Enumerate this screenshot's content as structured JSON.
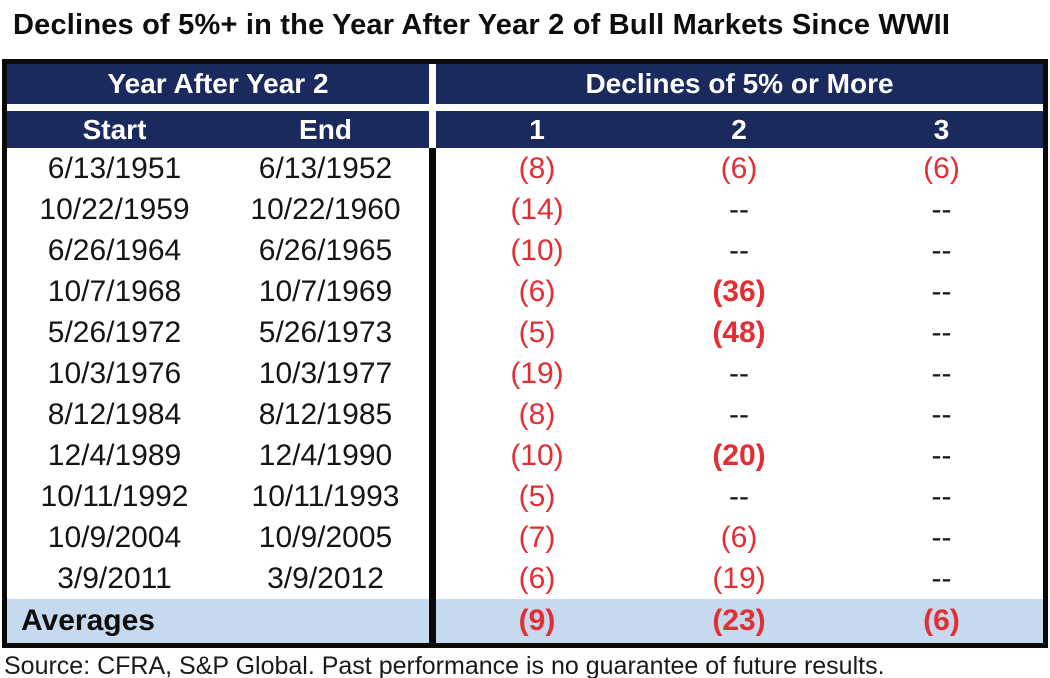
{
  "title": "Declines of 5%+ in the Year After Year 2 of Bull Markets Since WWII",
  "footer": "Source: CFRA, S&P Global. Past performance is no guarantee of future results.",
  "colors": {
    "navy": "#1b2a5c",
    "red": "#e32e33",
    "averages_bg": "#c6d9ee",
    "border": "#0a0a0a"
  },
  "chart_data": {
    "type": "table",
    "title": "Declines of 5%+ in the Year After Year 2 of Bull Markets Since WWII",
    "group_headers": [
      {
        "label": "Year After Year 2"
      },
      {
        "label": "Declines of 5% or More"
      }
    ],
    "columns": [
      "Start",
      "End",
      "1",
      "2",
      "3"
    ],
    "rows": [
      {
        "start": "6/13/1951",
        "end": "6/13/1952",
        "declines": [
          {
            "v": "(8)",
            "red": true,
            "bold": false
          },
          {
            "v": "(6)",
            "red": true,
            "bold": false
          },
          {
            "v": "(6)",
            "red": true,
            "bold": false
          }
        ]
      },
      {
        "start": "10/22/1959",
        "end": "10/22/1960",
        "declines": [
          {
            "v": "(14)",
            "red": true,
            "bold": false
          },
          {
            "v": "--",
            "red": false,
            "bold": false
          },
          {
            "v": "--",
            "red": false,
            "bold": false
          }
        ]
      },
      {
        "start": "6/26/1964",
        "end": "6/26/1965",
        "declines": [
          {
            "v": "(10)",
            "red": true,
            "bold": false
          },
          {
            "v": "--",
            "red": false,
            "bold": false
          },
          {
            "v": "--",
            "red": false,
            "bold": false
          }
        ]
      },
      {
        "start": "10/7/1968",
        "end": "10/7/1969",
        "declines": [
          {
            "v": "(6)",
            "red": true,
            "bold": false
          },
          {
            "v": "(36)",
            "red": true,
            "bold": true
          },
          {
            "v": "--",
            "red": false,
            "bold": false
          }
        ]
      },
      {
        "start": "5/26/1972",
        "end": "5/26/1973",
        "declines": [
          {
            "v": "(5)",
            "red": true,
            "bold": false
          },
          {
            "v": "(48)",
            "red": true,
            "bold": true
          },
          {
            "v": "--",
            "red": false,
            "bold": false
          }
        ]
      },
      {
        "start": "10/3/1976",
        "end": "10/3/1977",
        "declines": [
          {
            "v": "(19)",
            "red": true,
            "bold": false
          },
          {
            "v": "--",
            "red": false,
            "bold": false
          },
          {
            "v": "--",
            "red": false,
            "bold": false
          }
        ]
      },
      {
        "start": "8/12/1984",
        "end": "8/12/1985",
        "declines": [
          {
            "v": "(8)",
            "red": true,
            "bold": false
          },
          {
            "v": "--",
            "red": false,
            "bold": false
          },
          {
            "v": "--",
            "red": false,
            "bold": false
          }
        ]
      },
      {
        "start": "12/4/1989",
        "end": "12/4/1990",
        "declines": [
          {
            "v": "(10)",
            "red": true,
            "bold": false
          },
          {
            "v": "(20)",
            "red": true,
            "bold": true
          },
          {
            "v": "--",
            "red": false,
            "bold": false
          }
        ]
      },
      {
        "start": "10/11/1992",
        "end": "10/11/1993",
        "declines": [
          {
            "v": "(5)",
            "red": true,
            "bold": false
          },
          {
            "v": "--",
            "red": false,
            "bold": false
          },
          {
            "v": "--",
            "red": false,
            "bold": false
          }
        ]
      },
      {
        "start": "10/9/2004",
        "end": "10/9/2005",
        "declines": [
          {
            "v": "(7)",
            "red": true,
            "bold": false
          },
          {
            "v": "(6)",
            "red": true,
            "bold": false
          },
          {
            "v": "--",
            "red": false,
            "bold": false
          }
        ]
      },
      {
        "start": "3/9/2011",
        "end": "3/9/2012",
        "declines": [
          {
            "v": "(6)",
            "red": true,
            "bold": false
          },
          {
            "v": "(19)",
            "red": true,
            "bold": false
          },
          {
            "v": "--",
            "red": false,
            "bold": false
          }
        ]
      }
    ],
    "averages": {
      "label": "Averages",
      "declines": [
        {
          "v": "(9)",
          "red": true,
          "bold": true
        },
        {
          "v": "(23)",
          "red": true,
          "bold": true
        },
        {
          "v": "(6)",
          "red": true,
          "bold": true
        }
      ]
    }
  }
}
